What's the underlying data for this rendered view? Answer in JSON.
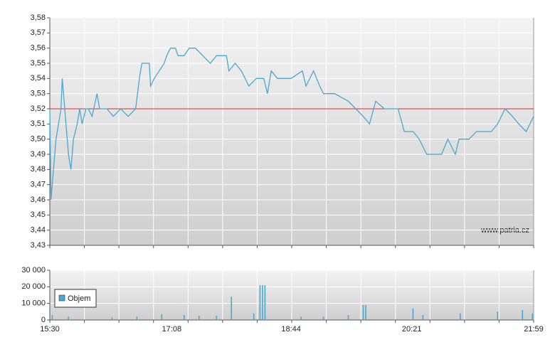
{
  "chart_data": [
    {
      "type": "line",
      "color": "#4aa8d0",
      "x": [
        "15:30",
        "15:31",
        "15:33",
        "15:35",
        "15:37",
        "15:39",
        "15:40",
        "15:43",
        "15:45",
        "15:47",
        "15:49",
        "15:52",
        "15:54",
        "15:56",
        "15:59",
        "16:01",
        "16:04",
        "16:08",
        "16:10",
        "16:16",
        "16:21",
        "16:27",
        "16:33",
        "16:39",
        "16:42",
        "16:44",
        "16:50",
        "16:51",
        "16:54",
        "17:02",
        "17:04",
        "17:07",
        "17:11",
        "17:13",
        "17:18",
        "17:22",
        "17:27",
        "17:33",
        "17:39",
        "17:44",
        "17:52",
        "17:54",
        "17:59",
        "18:04",
        "18:10",
        "18:16",
        "18:22",
        "18:25",
        "18:28",
        "18:33",
        "18:44",
        "18:53",
        "18:56",
        "19:02",
        "19:07",
        "19:10",
        "19:19",
        "19:30",
        "19:36",
        "19:42",
        "19:47",
        "19:52",
        "19:59",
        "20:10",
        "20:15",
        "20:22",
        "20:27",
        "20:33",
        "20:39",
        "20:45",
        "20:50",
        "20:56",
        "20:59",
        "21:07",
        "21:13",
        "21:25",
        "21:30",
        "21:36",
        "21:42",
        "21:47",
        "21:53",
        "21:59"
      ],
      "values": [
        3.52,
        3.46,
        3.48,
        3.5,
        3.51,
        3.52,
        3.54,
        3.51,
        3.49,
        3.48,
        3.5,
        3.51,
        3.52,
        3.51,
        3.52,
        3.52,
        3.515,
        3.53,
        3.52,
        3.52,
        3.515,
        3.52,
        3.515,
        3.52,
        3.54,
        3.55,
        3.55,
        3.535,
        3.54,
        3.55,
        3.555,
        3.56,
        3.56,
        3.555,
        3.555,
        3.56,
        3.56,
        3.555,
        3.55,
        3.555,
        3.555,
        3.545,
        3.55,
        3.545,
        3.535,
        3.54,
        3.54,
        3.53,
        3.545,
        3.54,
        3.54,
        3.545,
        3.535,
        3.545,
        3.535,
        3.53,
        3.53,
        3.525,
        3.52,
        3.515,
        3.51,
        3.525,
        3.52,
        3.52,
        3.505,
        3.505,
        3.5,
        3.49,
        3.49,
        3.49,
        3.5,
        3.49,
        3.5,
        3.5,
        3.505,
        3.505,
        3.51,
        3.52,
        3.515,
        3.51,
        3.505,
        3.515
      ],
      "xlim": [
        "15:30",
        "21:59"
      ],
      "ylim": [
        3.43,
        3.58
      ],
      "yticks": [
        {
          "value": 3.43,
          "label": "3,43"
        },
        {
          "value": 3.44,
          "label": "3,44"
        },
        {
          "value": 3.45,
          "label": "3,45"
        },
        {
          "value": 3.46,
          "label": "3,46"
        },
        {
          "value": 3.47,
          "label": "3,47"
        },
        {
          "value": 3.48,
          "label": "3,48"
        },
        {
          "value": 3.49,
          "label": "3,49"
        },
        {
          "value": 3.5,
          "label": "3,50"
        },
        {
          "value": 3.51,
          "label": "3,51"
        },
        {
          "value": 3.52,
          "label": "3,52"
        },
        {
          "value": 3.53,
          "label": "3,53"
        },
        {
          "value": 3.54,
          "label": "3,54"
        },
        {
          "value": 3.55,
          "label": "3,55"
        },
        {
          "value": 3.56,
          "label": "3,56"
        },
        {
          "value": 3.57,
          "label": "3,57"
        },
        {
          "value": 3.58,
          "label": "3,58"
        }
      ],
      "reference_line": 3.52,
      "reference_color": "#d03030",
      "grid": true,
      "watermark": "www.patria.cz"
    },
    {
      "type": "bar",
      "series": [
        {
          "name": "Objem",
          "color": "#4aa8d0",
          "x": [
            "15:32",
            "15:45",
            "16:20",
            "16:40",
            "17:00",
            "17:18",
            "17:30",
            "17:44",
            "17:56",
            "18:14",
            "18:19",
            "18:21",
            "18:23",
            "18:52",
            "19:10",
            "19:30",
            "19:42",
            "19:44",
            "20:22",
            "20:30",
            "21:00",
            "21:30",
            "21:50",
            "21:58"
          ],
          "values": [
            3000,
            2000,
            1500,
            2000,
            3500,
            3000,
            2500,
            2500,
            14000,
            4000,
            21000,
            21000,
            21000,
            2000,
            2000,
            3000,
            9000,
            9000,
            7000,
            3000,
            4000,
            5000,
            6000,
            4000
          ]
        }
      ],
      "xlim": [
        "15:30",
        "21:59"
      ],
      "xticks": [
        "15:30",
        "17:08",
        "18:44",
        "20:21",
        "21:59"
      ],
      "ylim": [
        0,
        30000
      ],
      "yticks": [
        0,
        {
          "value": 10000,
          "label": "10 000"
        },
        {
          "value": 20000,
          "label": "20 000"
        },
        {
          "value": 30000,
          "label": "30 000"
        }
      ],
      "grid": true,
      "legend": "upper left"
    }
  ]
}
